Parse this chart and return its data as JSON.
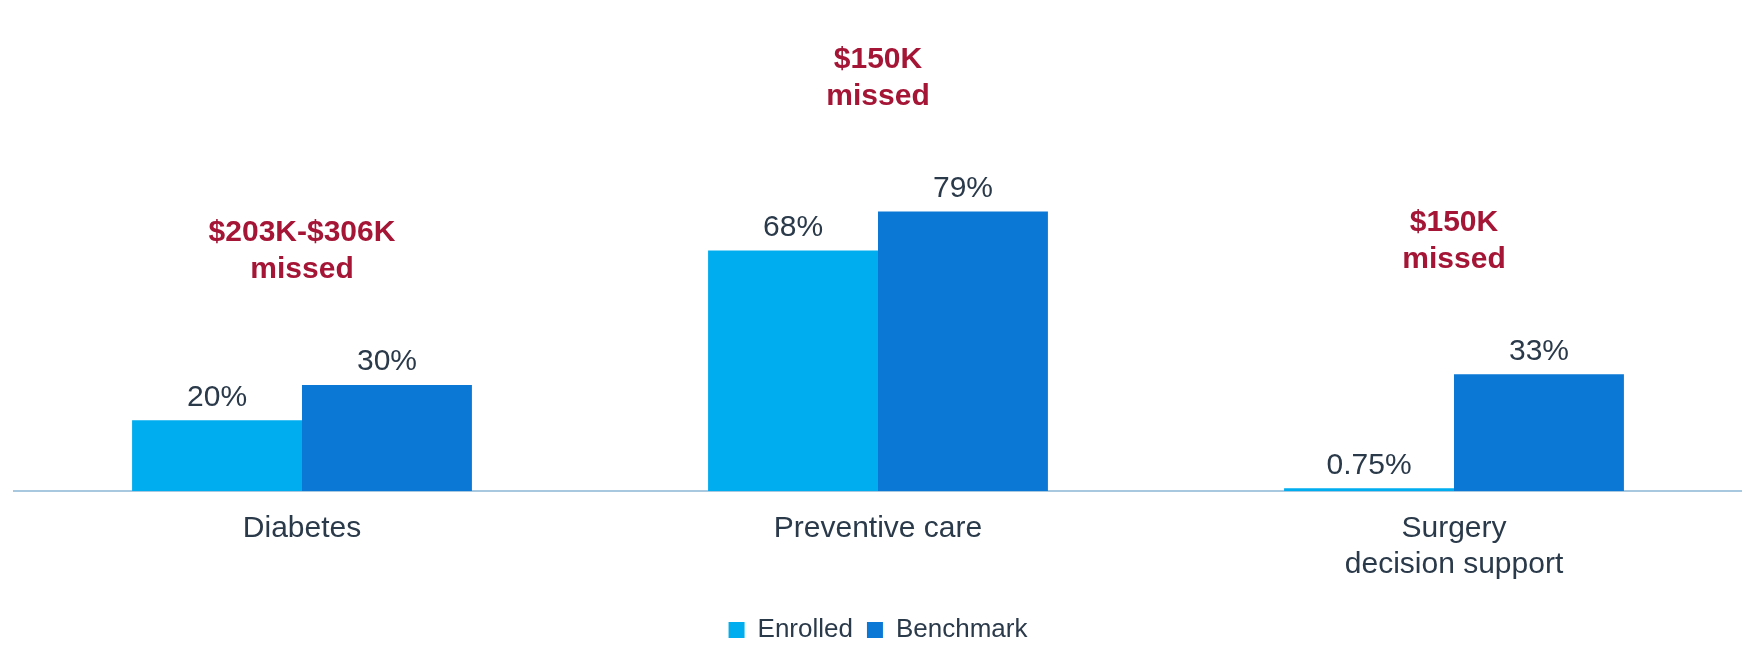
{
  "chart_data": {
    "type": "bar",
    "categories": [
      "Diabetes",
      "Preventive care",
      "Surgery\ndecision support"
    ],
    "series": [
      {
        "name": "Enrolled",
        "color": "#00adef",
        "values": [
          20,
          68,
          0.75
        ],
        "value_labels": [
          "20%",
          "68%",
          "0.75%"
        ]
      },
      {
        "name": "Benchmark",
        "color": "#0b78d6",
        "values": [
          30,
          79,
          33
        ],
        "value_labels": [
          "30%",
          "79%",
          "33%"
        ]
      }
    ],
    "annotations": [
      "$203K-$306K\nmissed",
      "$150K\nmissed",
      "$150K\nmissed"
    ],
    "legend": "bottom",
    "grid": false
  }
}
